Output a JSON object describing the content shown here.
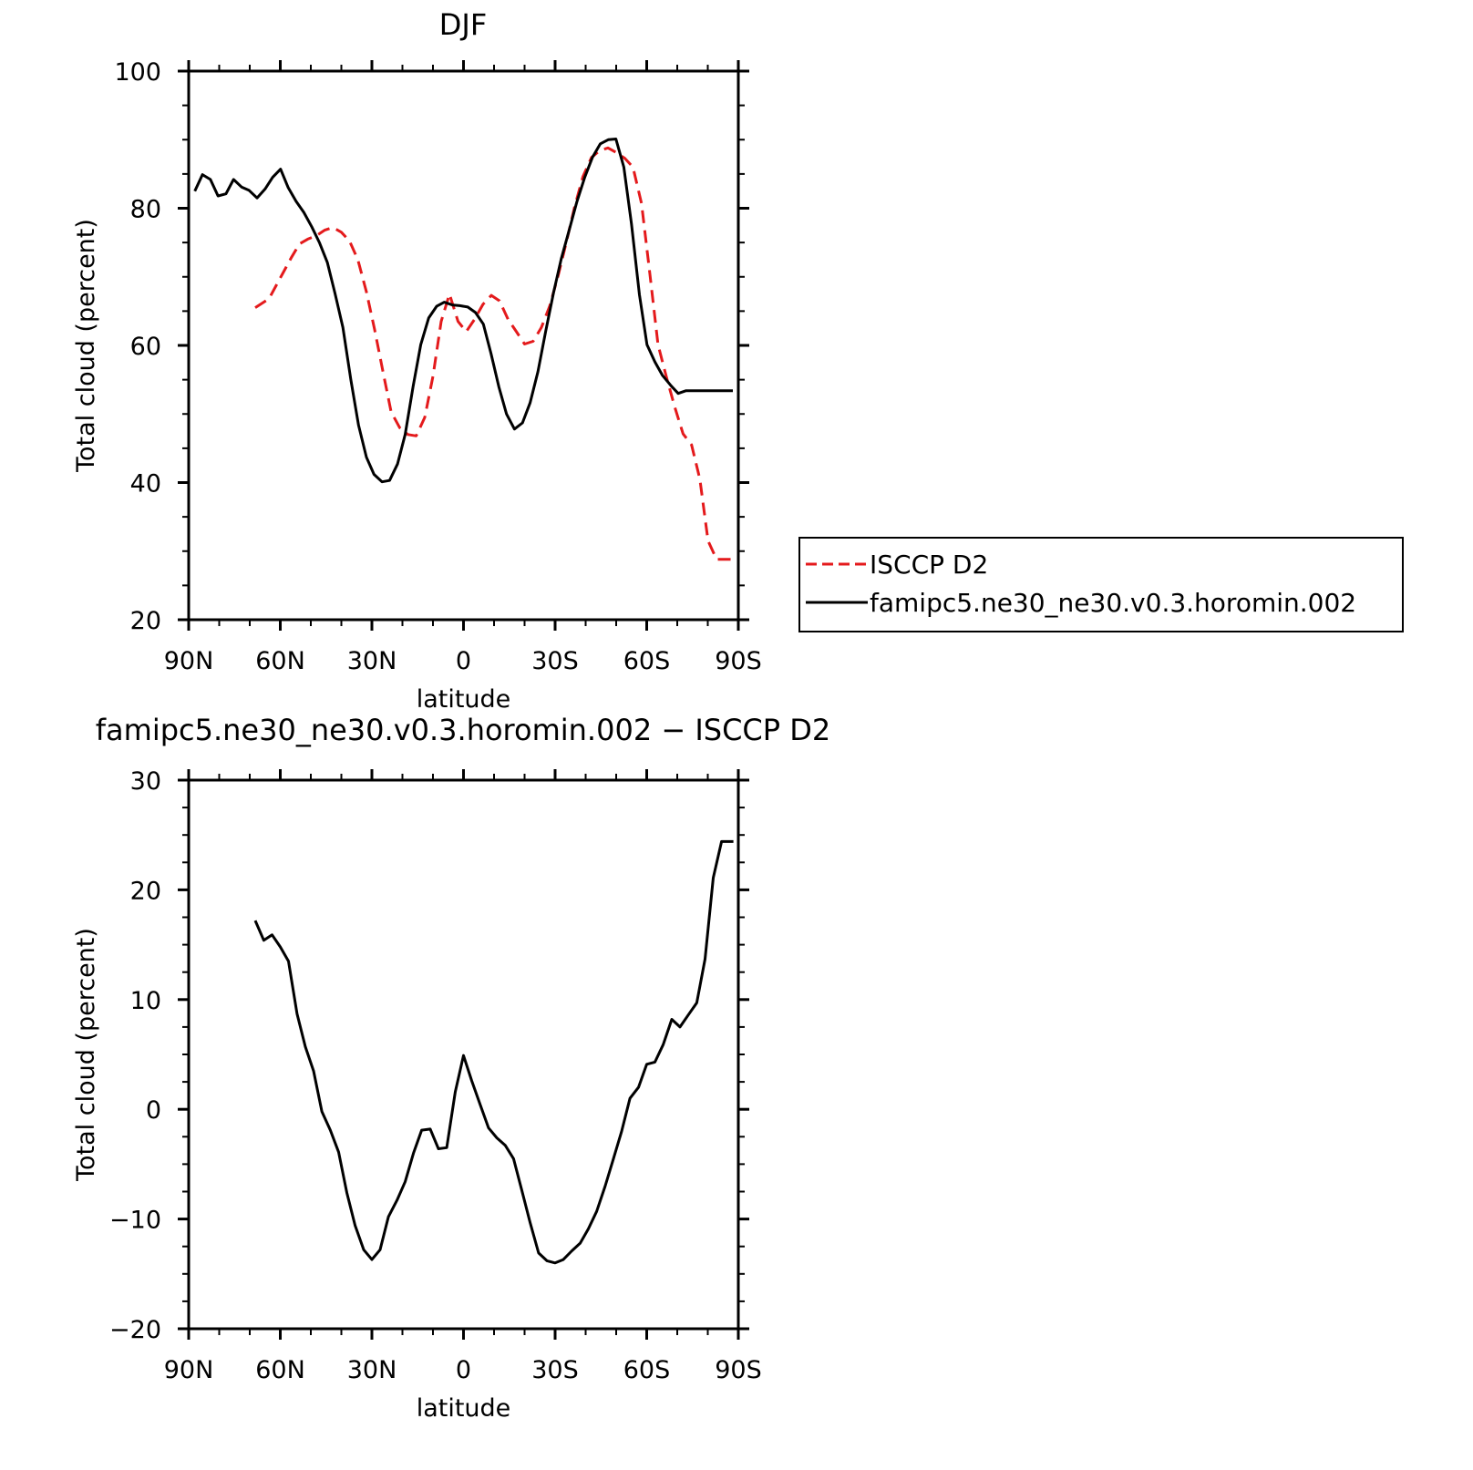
{
  "chart_data": [
    {
      "type": "line",
      "title": "DJF",
      "xlabel": "latitude",
      "ylabel": "Total cloud (percent)",
      "xlim": [
        90,
        -90
      ],
      "ylim": [
        20,
        100
      ],
      "xticks": [
        90,
        60,
        30,
        0,
        -30,
        -60,
        -90
      ],
      "xtick_labels": [
        "90N",
        "60N",
        "30N",
        "0",
        "30S",
        "60S",
        "90S"
      ],
      "yticks": [
        20,
        40,
        60,
        80,
        100
      ],
      "ytick_labels": [
        "20",
        "40",
        "60",
        "80",
        "100"
      ],
      "legend_position": "right",
      "series": [
        {
          "name": "ISCCP D2",
          "color": "#e41a1c",
          "dash": "dashed",
          "x": [
            68.2,
            63.7,
            59.2,
            56.4,
            53.7,
            51.0,
            48.2,
            45.5,
            42.8,
            40.0,
            37.3,
            34.6,
            31.8,
            29.1,
            26.4,
            23.7,
            20.9,
            18.2,
            15.5,
            12.7,
            10.0,
            7.3,
            4.6,
            1.8,
            -0.9,
            -3.6,
            -6.4,
            -9.1,
            -11.8,
            -14.6,
            -17.3,
            -20.0,
            -22.8,
            -25.5,
            -28.2,
            -31.0,
            -33.7,
            -36.4,
            -39.1,
            -41.9,
            -44.6,
            -47.3,
            -50.1,
            -52.8,
            -55.5,
            -58.3,
            -61.0,
            -63.7,
            -66.5,
            -69.2,
            -71.9,
            -74.7,
            -77.4,
            -80.1,
            -82.9,
            -85.6,
            -88.3
          ],
          "values": [
            65.5,
            66.8,
            70.5,
            72.8,
            74.8,
            75.5,
            76.0,
            76.8,
            77.2,
            76.5,
            75.2,
            72.5,
            67.8,
            62.3,
            56.2,
            50.3,
            48.0,
            47.0,
            46.8,
            49.5,
            55.5,
            63.5,
            67.5,
            63.5,
            62.0,
            63.8,
            66.0,
            67.3,
            66.5,
            63.8,
            62.0,
            60.2,
            60.6,
            62.6,
            65.7,
            70.2,
            75.1,
            80.2,
            84.6,
            87.4,
            88.4,
            88.8,
            88.1,
            87.3,
            86.0,
            80.7,
            70.5,
            60.1,
            55.3,
            51.0,
            47.1,
            45.5,
            40.5,
            31.5,
            28.8,
            28.8,
            28.8
          ]
        },
        {
          "name": "famipc5.ne30_ne30.v0.3.horomin.002",
          "color": "#000000",
          "dash": "solid",
          "x": [
            88.0,
            85.5,
            82.9,
            80.4,
            77.8,
            75.3,
            72.7,
            70.2,
            67.6,
            65.0,
            62.5,
            59.9,
            57.4,
            54.8,
            52.3,
            49.7,
            47.2,
            44.6,
            42.1,
            39.5,
            36.9,
            34.4,
            31.8,
            29.3,
            26.7,
            24.2,
            21.6,
            19.1,
            16.5,
            14.0,
            11.4,
            8.8,
            6.3,
            3.7,
            1.2,
            -1.4,
            -3.9,
            -6.5,
            -9.0,
            -11.6,
            -14.1,
            -16.7,
            -19.3,
            -21.8,
            -24.4,
            -26.9,
            -29.5,
            -32.0,
            -34.6,
            -37.1,
            -39.7,
            -42.2,
            -44.8,
            -47.4,
            -49.9,
            -52.5,
            -55.0,
            -57.6,
            -60.1,
            -62.7,
            -65.2,
            -67.8,
            -70.3,
            -72.9,
            -75.4,
            -78.0,
            -80.6,
            -83.1,
            -85.7,
            -88.2
          ],
          "values": [
            82.5,
            84.9,
            84.2,
            81.8,
            82.1,
            84.2,
            83.1,
            82.6,
            81.5,
            82.8,
            84.5,
            85.7,
            83.0,
            81.0,
            79.4,
            77.3,
            75.0,
            72.1,
            67.6,
            62.6,
            55.0,
            48.4,
            43.7,
            41.2,
            40.1,
            40.3,
            42.7,
            47.0,
            54.0,
            60.1,
            64.0,
            65.7,
            66.3,
            65.9,
            65.8,
            65.6,
            64.8,
            63.1,
            58.8,
            53.9,
            50.0,
            47.8,
            48.7,
            51.6,
            56.2,
            62.0,
            67.7,
            72.6,
            76.8,
            80.9,
            84.5,
            87.4,
            89.4,
            90.0,
            90.1,
            86.0,
            77.7,
            67.4,
            60.1,
            57.6,
            55.6,
            54.2,
            53.0,
            53.4,
            53.4,
            53.4,
            53.4,
            53.4,
            53.4,
            53.4
          ]
        }
      ]
    },
    {
      "type": "line",
      "title": "famipc5.ne30_ne30.v0.3.horomin.002 − ISCCP D2",
      "xlabel": "latitude",
      "ylabel": "Total cloud (percent)",
      "xlim": [
        90,
        -90
      ],
      "ylim": [
        -20,
        30
      ],
      "xticks": [
        90,
        60,
        30,
        0,
        -30,
        -60,
        -90
      ],
      "xtick_labels": [
        "90N",
        "60N",
        "30N",
        "0",
        "30S",
        "60S",
        "90S"
      ],
      "yticks": [
        -20,
        -10,
        0,
        10,
        20,
        30
      ],
      "ytick_labels": [
        "−20",
        "−10",
        "0",
        "10",
        "20",
        "30"
      ],
      "series": [
        {
          "color": "#000000",
          "dash": "solid",
          "x": [
            68.2,
            65.4,
            62.7,
            60.0,
            57.3,
            54.5,
            51.8,
            49.1,
            46.4,
            43.6,
            40.9,
            38.2,
            35.5,
            32.7,
            30.0,
            27.3,
            24.6,
            21.8,
            19.1,
            16.4,
            13.7,
            10.9,
            8.2,
            5.5,
            2.7,
            0.0,
            -2.7,
            -5.5,
            -8.2,
            -10.9,
            -13.7,
            -16.4,
            -19.1,
            -21.8,
            -24.6,
            -27.3,
            -30.0,
            -32.7,
            -35.5,
            -38.2,
            -40.9,
            -43.6,
            -46.4,
            -49.1,
            -51.8,
            -54.5,
            -57.3,
            -60.0,
            -62.7,
            -65.4,
            -68.2,
            -70.9,
            -73.6,
            -76.4,
            -79.1,
            -81.8,
            -84.5,
            -87.3,
            -88.4
          ],
          "values": [
            17.2,
            15.4,
            15.9,
            14.8,
            13.5,
            8.7,
            5.7,
            3.5,
            -0.2,
            -1.9,
            -3.9,
            -7.6,
            -10.6,
            -12.8,
            -13.7,
            -12.8,
            -9.8,
            -8.3,
            -6.6,
            -4.0,
            -1.9,
            -1.8,
            -3.6,
            -3.5,
            1.6,
            4.9,
            2.6,
            0.4,
            -1.7,
            -2.6,
            -3.3,
            -4.5,
            -7.4,
            -10.3,
            -13.1,
            -13.8,
            -14.0,
            -13.7,
            -12.9,
            -12.2,
            -10.9,
            -9.3,
            -7.0,
            -4.5,
            -2.0,
            1.0,
            2.0,
            4.1,
            4.3,
            5.9,
            8.2,
            7.5,
            8.6,
            9.7,
            13.7,
            21.1,
            24.4,
            24.4,
            24.4
          ]
        }
      ]
    }
  ]
}
